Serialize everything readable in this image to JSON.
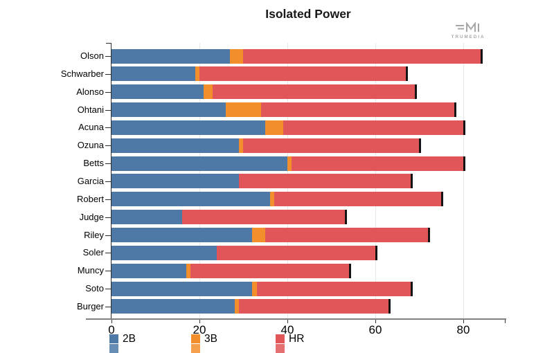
{
  "header": {
    "title": "Isolated Power"
  },
  "branding": {
    "logo_text": "TRUMEDIA",
    "logo_icon": "trumedia-bars-m-glyph",
    "logo_color": "#a6a6a6"
  },
  "chart_data": {
    "type": "bar",
    "orientation": "horizontal",
    "stacked": true,
    "title": "Isolated Power",
    "categories": [
      "Olson",
      "Schwarber",
      "Alonso",
      "Ohtani",
      "Acuna",
      "Ozuna",
      "Betts",
      "Garcia",
      "Robert",
      "Judge",
      "Riley",
      "Soler",
      "Muncy",
      "Soto",
      "Burger"
    ],
    "series": [
      {
        "name": "2B",
        "color": "#4e79a7",
        "values": [
          27,
          19,
          21,
          26,
          35,
          29,
          40,
          29,
          36,
          16,
          32,
          24,
          17,
          32,
          28
        ]
      },
      {
        "name": "3B",
        "color": "#f28e2b",
        "values": [
          3,
          1,
          2,
          8,
          4,
          1,
          1,
          0,
          1,
          0,
          3,
          0,
          1,
          1,
          1
        ]
      },
      {
        "name": "HR",
        "color": "#e15759",
        "values": [
          54,
          47,
          46,
          44,
          41,
          40,
          39,
          39,
          38,
          37,
          37,
          36,
          36,
          35,
          34
        ]
      }
    ],
    "totals": [
      84,
      67,
      69,
      78,
      80,
      70,
      80,
      68,
      75,
      53,
      72,
      60,
      54,
      68,
      63
    ],
    "xlim": [
      0,
      89.5
    ],
    "x_ticks": [
      0,
      20,
      40,
      60,
      80
    ],
    "x_end_tick": 89.5,
    "grid": true,
    "legend_position": "bottom",
    "bar_endcap_color": "#141414"
  },
  "legend": {
    "items": [
      {
        "label": "2B",
        "color": "#4e79a7"
      },
      {
        "label": "3B",
        "color": "#f28e2b"
      },
      {
        "label": "HR",
        "color": "#e15759"
      }
    ]
  }
}
